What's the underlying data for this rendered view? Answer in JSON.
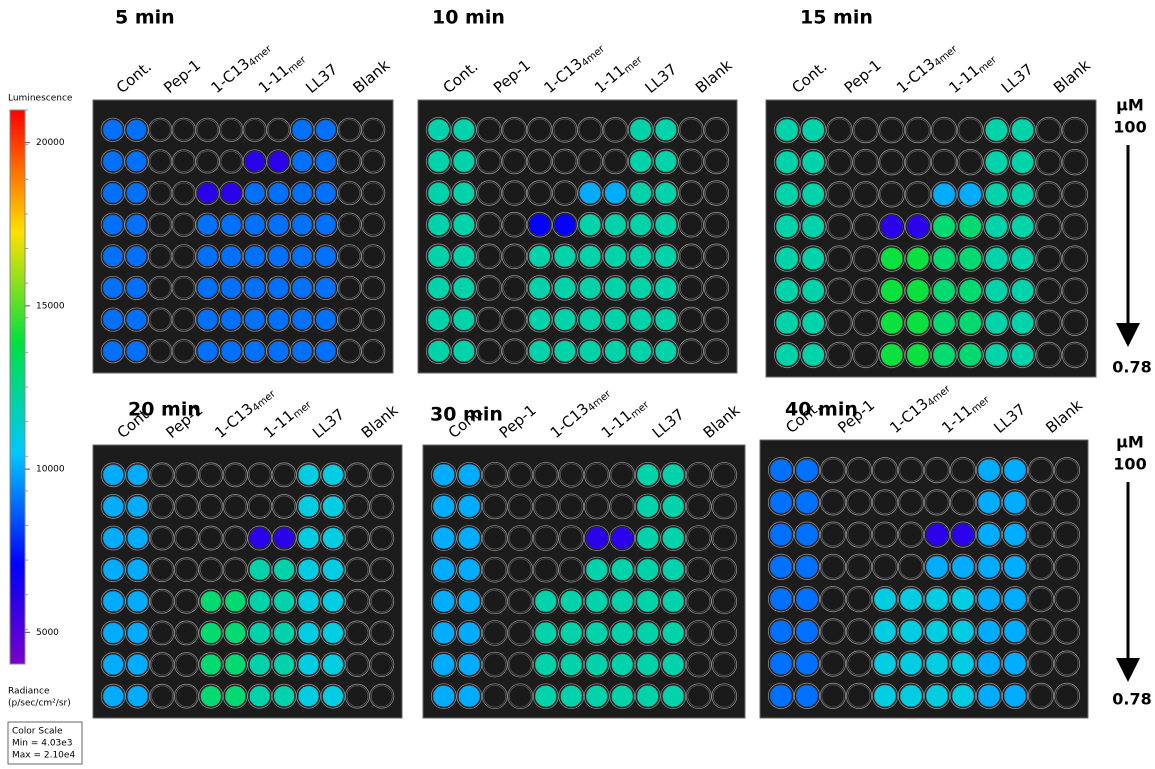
{
  "color_bar": {
    "title": "Luminescence",
    "ticks": [
      20000,
      15000,
      10000,
      5000
    ],
    "unit_label": "Radiance",
    "unit": "(p/sec/cm²/sr)",
    "scale": {
      "label": "Color Scale",
      "min": {
        "value": 4030,
        "label": "Min = 4.03e3"
      },
      "max": {
        "value": 21000,
        "label": "Max = 2.10e4"
      }
    }
  },
  "columns": [
    {
      "main": "Cont."
    },
    {
      "main": "Pep-1"
    },
    {
      "main": "1-C13",
      "sub": "4mer"
    },
    {
      "main": "1-11",
      "sub": "mer"
    },
    {
      "main": "LL37"
    },
    {
      "main": "Blank"
    }
  ],
  "concentration": {
    "unit": "μM",
    "top": "100",
    "bottom": "0.78"
  },
  "panels": [
    {
      "title": "5 min",
      "wells": [
        [
          9000,
          9000,
          0,
          0,
          0,
          0,
          0,
          0,
          9000,
          9000,
          0,
          0
        ],
        [
          9000,
          9000,
          0,
          0,
          0,
          0,
          6000,
          6000,
          9000,
          9000,
          0,
          0
        ],
        [
          9000,
          9000,
          0,
          0,
          6000,
          6000,
          9000,
          9000,
          9000,
          9000,
          0,
          0
        ],
        [
          9000,
          9000,
          0,
          0,
          9000,
          9000,
          9000,
          9000,
          9000,
          9000,
          0,
          0
        ],
        [
          9000,
          9000,
          0,
          0,
          9000,
          9000,
          9000,
          9000,
          9000,
          9000,
          0,
          0
        ],
        [
          9000,
          9000,
          0,
          0,
          9000,
          9000,
          9000,
          9000,
          9000,
          9000,
          0,
          0
        ],
        [
          9000,
          9000,
          0,
          0,
          9000,
          9000,
          9000,
          9000,
          9000,
          9000,
          0,
          0
        ],
        [
          9000,
          9000,
          0,
          0,
          9000,
          9000,
          9000,
          9000,
          9000,
          9000,
          0,
          0
        ]
      ]
    },
    {
      "title": "10 min",
      "wells": [
        [
          12000,
          12000,
          0,
          0,
          0,
          0,
          0,
          0,
          12000,
          12000,
          0,
          0
        ],
        [
          12000,
          12000,
          0,
          0,
          0,
          0,
          0,
          0,
          12000,
          12000,
          0,
          0
        ],
        [
          12000,
          12000,
          0,
          0,
          0,
          0,
          10000,
          10000,
          12000,
          12000,
          0,
          0
        ],
        [
          12000,
          12000,
          0,
          0,
          7000,
          7000,
          12000,
          12000,
          12000,
          12000,
          0,
          0
        ],
        [
          12000,
          12000,
          0,
          0,
          12000,
          12000,
          12000,
          12000,
          12000,
          12000,
          0,
          0
        ],
        [
          12000,
          12000,
          0,
          0,
          12000,
          12000,
          12000,
          12000,
          12000,
          12000,
          0,
          0
        ],
        [
          12000,
          12000,
          0,
          0,
          12000,
          12000,
          12000,
          12000,
          12000,
          12000,
          0,
          0
        ],
        [
          12000,
          12000,
          0,
          0,
          12000,
          12000,
          12000,
          12000,
          12000,
          12000,
          0,
          0
        ]
      ]
    },
    {
      "title": "15 min",
      "wells": [
        [
          12000,
          12000,
          0,
          0,
          0,
          0,
          0,
          0,
          12000,
          12000,
          0,
          0
        ],
        [
          12000,
          12000,
          0,
          0,
          0,
          0,
          0,
          0,
          12000,
          12000,
          0,
          0
        ],
        [
          12000,
          12000,
          0,
          0,
          0,
          0,
          10000,
          10000,
          12000,
          12000,
          0,
          0
        ],
        [
          12000,
          12000,
          0,
          0,
          6000,
          6000,
          13000,
          13000,
          12000,
          12000,
          0,
          0
        ],
        [
          12000,
          12000,
          0,
          0,
          14000,
          14000,
          13000,
          13000,
          12000,
          12000,
          0,
          0
        ],
        [
          12000,
          12000,
          0,
          0,
          14000,
          14000,
          13000,
          13000,
          12000,
          12000,
          0,
          0
        ],
        [
          12000,
          12000,
          0,
          0,
          14000,
          14000,
          13000,
          13000,
          12000,
          12000,
          0,
          0
        ],
        [
          12000,
          12000,
          0,
          0,
          14000,
          14000,
          13000,
          13000,
          12000,
          12000,
          0,
          0
        ]
      ]
    },
    {
      "title": "20 min",
      "wells": [
        [
          10000,
          10000,
          0,
          0,
          0,
          0,
          0,
          0,
          11000,
          11000,
          0,
          0
        ],
        [
          10000,
          10000,
          0,
          0,
          0,
          0,
          0,
          0,
          11000,
          11000,
          0,
          0
        ],
        [
          10000,
          10000,
          0,
          0,
          0,
          0,
          6000,
          6000,
          11000,
          11000,
          0,
          0
        ],
        [
          10000,
          10000,
          0,
          0,
          0,
          0,
          12000,
          12000,
          11000,
          11000,
          0,
          0
        ],
        [
          10000,
          10000,
          0,
          0,
          13000,
          13000,
          12000,
          12000,
          11000,
          11000,
          0,
          0
        ],
        [
          10000,
          10000,
          0,
          0,
          13000,
          13000,
          12000,
          12000,
          11000,
          11000,
          0,
          0
        ],
        [
          10000,
          10000,
          0,
          0,
          13000,
          13000,
          12000,
          12000,
          11000,
          11000,
          0,
          0
        ],
        [
          10000,
          10000,
          0,
          0,
          13000,
          13000,
          12000,
          12000,
          11000,
          11000,
          0,
          0
        ]
      ]
    },
    {
      "title": "30 min",
      "wells": [
        [
          10000,
          10000,
          0,
          0,
          0,
          0,
          0,
          0,
          12000,
          12000,
          0,
          0
        ],
        [
          10000,
          10000,
          0,
          0,
          0,
          0,
          0,
          0,
          12000,
          12000,
          0,
          0
        ],
        [
          10000,
          10000,
          0,
          0,
          0,
          0,
          6000,
          6000,
          12000,
          12000,
          0,
          0
        ],
        [
          10000,
          10000,
          0,
          0,
          0,
          0,
          12000,
          12000,
          12000,
          12000,
          0,
          0
        ],
        [
          10000,
          10000,
          0,
          0,
          12000,
          12000,
          12000,
          12000,
          12000,
          12000,
          0,
          0
        ],
        [
          10000,
          10000,
          0,
          0,
          12000,
          12000,
          12000,
          12000,
          12000,
          12000,
          0,
          0
        ],
        [
          10000,
          10000,
          0,
          0,
          12000,
          12000,
          12000,
          12000,
          12000,
          12000,
          0,
          0
        ],
        [
          10000,
          10000,
          0,
          0,
          12000,
          12000,
          12000,
          12000,
          12000,
          12000,
          0,
          0
        ]
      ]
    },
    {
      "title": "40 min",
      "wells": [
        [
          9000,
          9000,
          0,
          0,
          0,
          0,
          0,
          0,
          10000,
          10000,
          0,
          0
        ],
        [
          9000,
          9000,
          0,
          0,
          0,
          0,
          0,
          0,
          10000,
          10000,
          0,
          0
        ],
        [
          9000,
          9000,
          0,
          0,
          0,
          0,
          6000,
          6000,
          10000,
          10000,
          0,
          0
        ],
        [
          9000,
          9000,
          0,
          0,
          0,
          0,
          10000,
          10000,
          10000,
          10000,
          0,
          0
        ],
        [
          9000,
          9000,
          0,
          0,
          11000,
          11000,
          11000,
          11000,
          10000,
          10000,
          0,
          0
        ],
        [
          9000,
          9000,
          0,
          0,
          11000,
          11000,
          11000,
          11000,
          10000,
          10000,
          0,
          0
        ],
        [
          9000,
          9000,
          0,
          0,
          11000,
          11000,
          11000,
          11000,
          10000,
          10000,
          0,
          0
        ],
        [
          9000,
          9000,
          0,
          0,
          11000,
          11000,
          11000,
          11000,
          10000,
          10000,
          0,
          0
        ]
      ]
    }
  ]
}
